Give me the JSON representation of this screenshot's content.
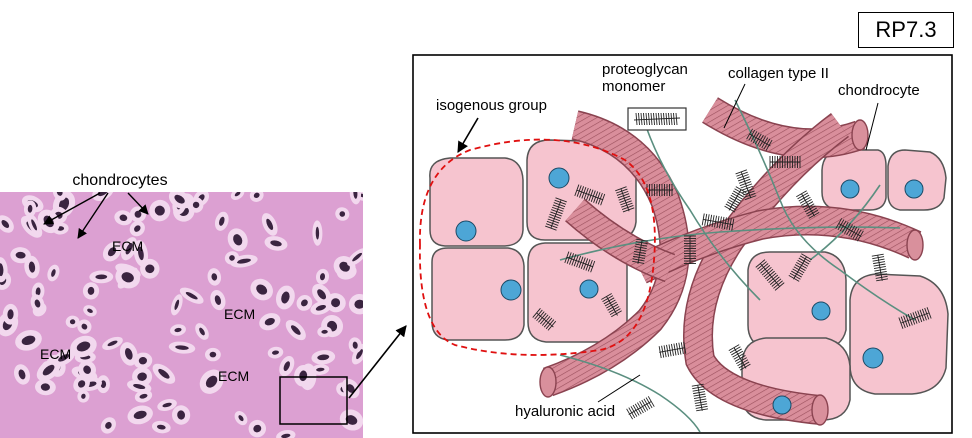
{
  "badge": "RP7.3",
  "micrograph": {
    "chondrocytes_label": "chondrocytes",
    "ecm_label": "ECM"
  },
  "diagram": {
    "isogenous_group": "isogenous group",
    "proteoglycan_line1": "proteoglycan",
    "proteoglycan_line2": "monomer",
    "collagen": "collagen type II",
    "chondrocyte": "chondrocyte",
    "hyaluronic": "hyaluronic acid"
  },
  "colors": {
    "micro_bg": "#dca0d2",
    "cell_fill": "#f6c4cf",
    "nucleus": "#4da6d6",
    "fiber_fill": "#d9909c",
    "isogenous_outline": "#e01010",
    "hyaluronic_strand": "#5b8f80"
  }
}
